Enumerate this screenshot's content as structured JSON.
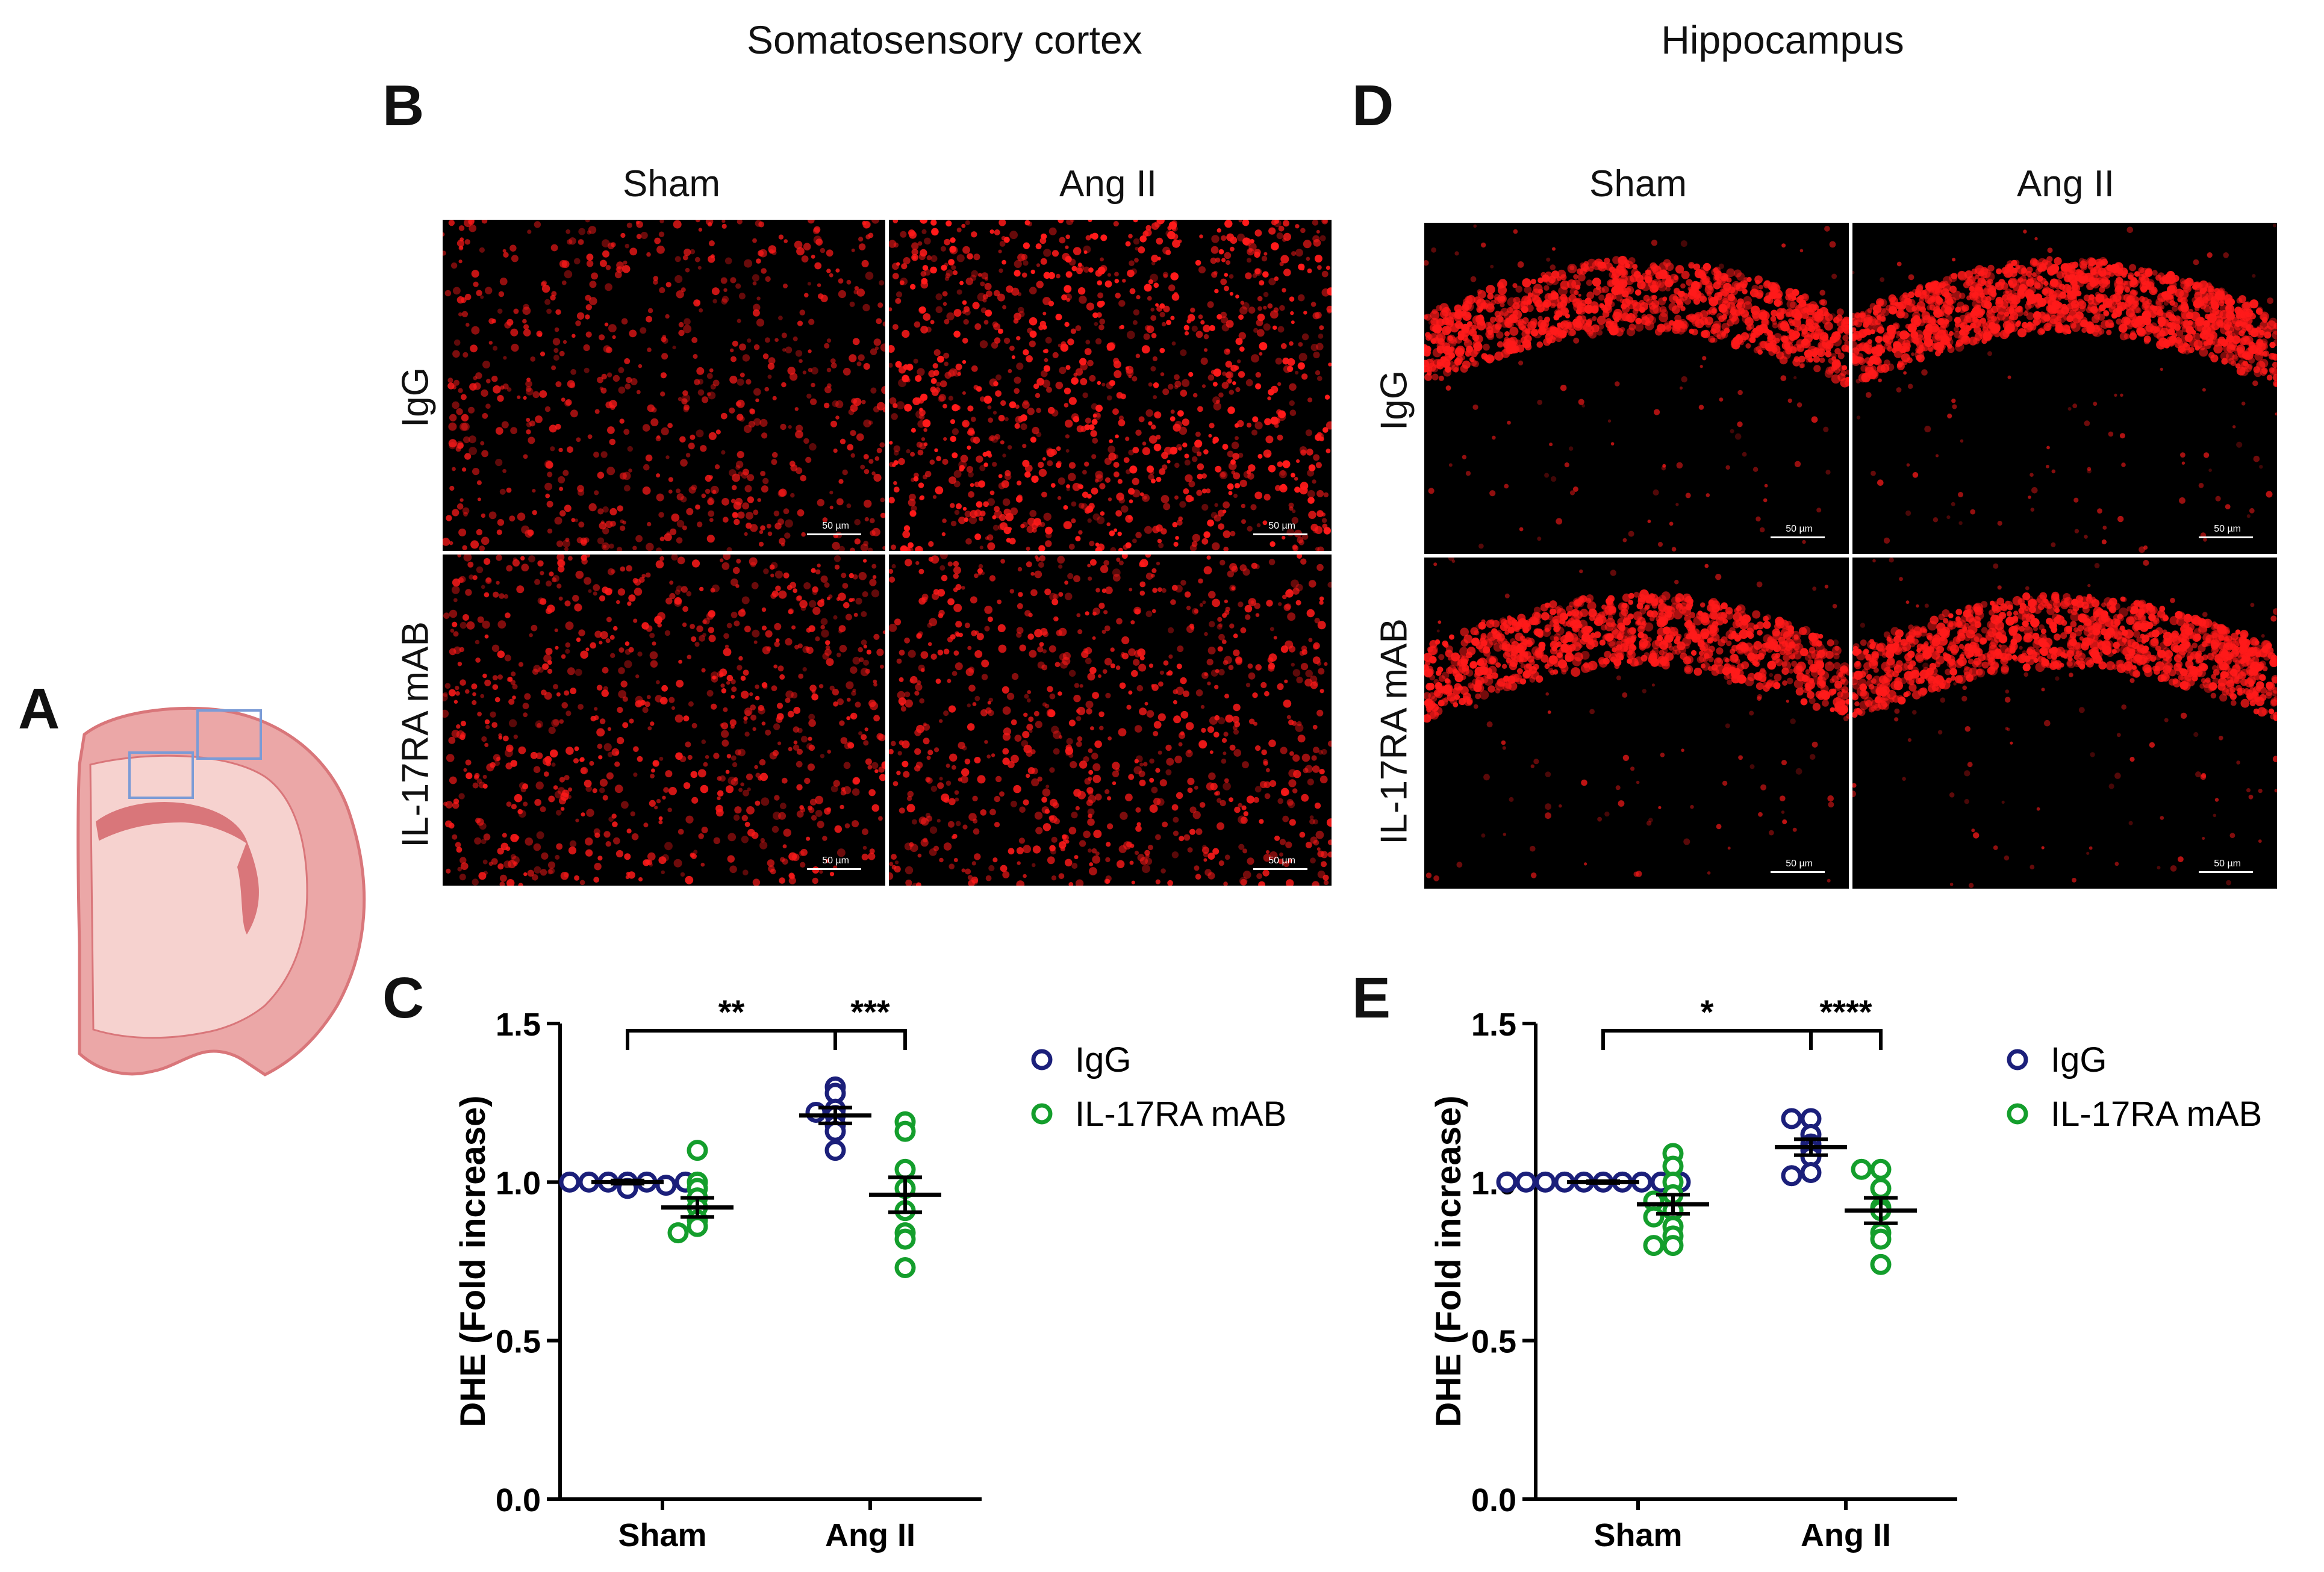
{
  "titles": {
    "somatosensory": "Somatosensory cortex",
    "hippocampus": "Hippocampus"
  },
  "panel_letters": {
    "A": "A",
    "B": "B",
    "C": "C",
    "D": "D",
    "E": "E"
  },
  "microscopy": {
    "col_labels": [
      "Sham",
      "Ang II"
    ],
    "row_labels": [
      "IgG",
      "IL-17RA mAB"
    ],
    "scale_label": "50 µm",
    "stain_color": "#ff1a1a"
  },
  "brain_colors": {
    "outline": "#d9767a",
    "fill_outer": "#eba7a7",
    "fill_inner": "#f6d2cf",
    "box": "#7b9bd6"
  },
  "legend": {
    "igg": "IgG",
    "mab": "IL-17RA mAB"
  },
  "series_colors": {
    "igg": "#1b1f7a",
    "mab": "#149e2c"
  },
  "chart_data": [
    {
      "type": "scatter",
      "panel": "C",
      "ylabel": "DHE (Fold increase)",
      "categories": [
        "Sham",
        "Ang II"
      ],
      "ylim": [
        0.0,
        1.5
      ],
      "yticks": [
        "0.0",
        "0.5",
        "1.0",
        "1.5"
      ],
      "series": [
        {
          "name": "IgG",
          "values": {
            "Sham": [
              1.0,
              1.0,
              1.0,
              1.0,
              0.99,
              1.0,
              1.0,
              0.98
            ],
            "Ang II": [
              1.3,
              1.28,
              1.23,
              1.22,
              1.21,
              1.18,
              1.16,
              1.1
            ]
          },
          "mean": {
            "Sham": 1.0,
            "Ang II": 1.21
          },
          "sem": {
            "Sham": 0.005,
            "Ang II": 0.025
          }
        },
        {
          "name": "IL-17RA mAB",
          "values": {
            "Sham": [
              1.1,
              1.0,
              0.98,
              0.95,
              0.92,
              0.88,
              0.86,
              0.84
            ],
            "Ang II": [
              1.19,
              1.16,
              1.04,
              0.98,
              0.91,
              0.84,
              0.82,
              0.73
            ]
          },
          "mean": {
            "Sham": 0.92,
            "Ang II": 0.96
          },
          "sem": {
            "Sham": 0.03,
            "Ang II": 0.055
          }
        }
      ],
      "significance": [
        {
          "from": "IgG-Sham",
          "to": "IgG-Ang II",
          "label": "**"
        },
        {
          "from": "IgG-Ang II",
          "to": "IL-17RA mAB-Ang II",
          "label": "***"
        }
      ]
    },
    {
      "type": "scatter",
      "panel": "E",
      "ylabel": "DHE (Fold increase)",
      "categories": [
        "Sham",
        "Ang II"
      ],
      "ylim": [
        0.0,
        1.5
      ],
      "yticks": [
        "0.0",
        "0.5",
        "1.0",
        "1.5"
      ],
      "series": [
        {
          "name": "IgG",
          "values": {
            "Sham": [
              1.0,
              1.0,
              1.0,
              1.0,
              1.0,
              1.0,
              1.0,
              1.0,
              1.0,
              1.0
            ],
            "Ang II": [
              1.2,
              1.2,
              1.15,
              1.12,
              1.1,
              1.08,
              1.03,
              1.02
            ]
          },
          "mean": {
            "Sham": 1.0,
            "Ang II": 1.11
          },
          "sem": {
            "Sham": 0.003,
            "Ang II": 0.025
          }
        },
        {
          "name": "IL-17RA mAB",
          "values": {
            "Sham": [
              1.09,
              1.05,
              1.0,
              0.96,
              0.94,
              0.91,
              0.89,
              0.86,
              0.83,
              0.8,
              0.8
            ],
            "Ang II": [
              1.04,
              1.04,
              0.98,
              0.92,
              0.91,
              0.84,
              0.82,
              0.74
            ]
          },
          "mean": {
            "Sham": 0.93,
            "Ang II": 0.91
          },
          "sem": {
            "Sham": 0.03,
            "Ang II": 0.04
          }
        }
      ],
      "significance": [
        {
          "from": "IgG-Sham",
          "to": "IgG-Ang II",
          "label": "*"
        },
        {
          "from": "IgG-Ang II",
          "to": "IL-17RA mAB-Ang II",
          "label": "****"
        }
      ]
    }
  ]
}
